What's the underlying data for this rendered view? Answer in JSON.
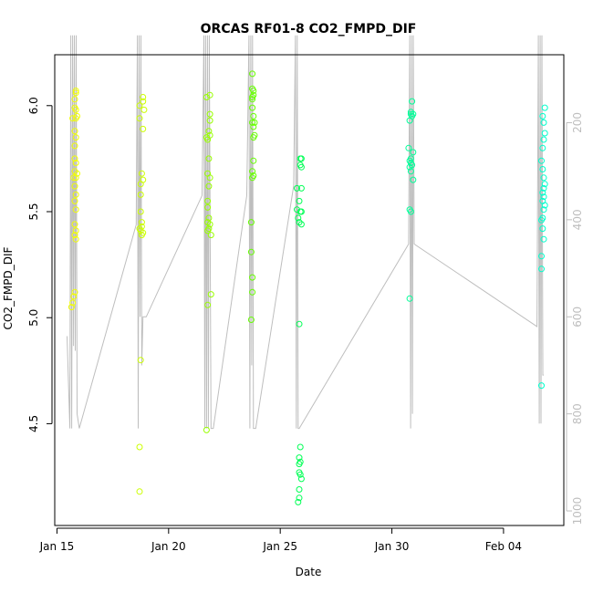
{
  "chart_data": {
    "type": "scatter",
    "title": "ORCAS RF01-8 CO2_FMPD_DIF",
    "xlabel": "Date",
    "ylabel": "CO2_FMPD_DIF",
    "x_ticks": [
      "Jan 15",
      "Jan 20",
      "Jan 25",
      "Jan 30",
      "Feb 04"
    ],
    "x_tick_days": [
      15,
      20,
      25,
      30,
      35
    ],
    "xlim_days": [
      14.9,
      37.7
    ],
    "ylim": [
      4.02,
      6.24
    ],
    "y_ticks": [
      4.5,
      5.0,
      5.5,
      6.0
    ],
    "y2_ticks": [
      200,
      400,
      600,
      800,
      1000
    ],
    "y2lim": [
      1030,
      60
    ],
    "y2_color": "#bebebe",
    "series": [
      {
        "color": "#f2ff00",
        "points": [
          [
            15.65,
            5.05
          ],
          [
            15.7,
            5.07
          ],
          [
            15.75,
            5.66
          ],
          [
            15.7,
            5.94
          ],
          [
            15.8,
            5.99
          ],
          [
            15.85,
            6.07
          ],
          [
            15.85,
            6.06
          ],
          [
            15.8,
            6.03
          ],
          [
            15.85,
            5.98
          ],
          [
            15.85,
            5.94
          ],
          [
            15.8,
            5.88
          ],
          [
            15.85,
            5.85
          ],
          [
            15.8,
            5.75
          ],
          [
            15.85,
            5.73
          ],
          [
            15.8,
            5.69
          ],
          [
            15.85,
            5.66
          ],
          [
            15.8,
            5.62
          ],
          [
            15.85,
            5.58
          ],
          [
            15.8,
            5.55
          ],
          [
            15.85,
            5.51
          ],
          [
            15.8,
            5.44
          ],
          [
            15.85,
            5.41
          ],
          [
            15.8,
            5.39
          ],
          [
            15.85,
            5.37
          ],
          [
            15.8,
            5.12
          ],
          [
            15.75,
            5.1
          ],
          [
            15.9,
            5.95
          ],
          [
            15.9,
            5.68
          ],
          [
            15.8,
            5.81
          ]
        ]
      },
      {
        "color": "#ccff00",
        "points": [
          [
            18.7,
            6.0
          ],
          [
            18.7,
            5.94
          ],
          [
            18.85,
            6.04
          ],
          [
            18.85,
            6.02
          ],
          [
            18.9,
            5.98
          ],
          [
            18.85,
            5.89
          ],
          [
            18.8,
            5.68
          ],
          [
            18.85,
            5.65
          ],
          [
            18.75,
            5.63
          ],
          [
            18.75,
            5.58
          ],
          [
            18.75,
            5.5
          ],
          [
            18.8,
            5.45
          ],
          [
            18.8,
            5.43
          ],
          [
            18.75,
            5.41
          ],
          [
            18.85,
            5.4
          ],
          [
            18.8,
            5.39
          ],
          [
            18.7,
            5.42
          ],
          [
            18.75,
            4.8
          ],
          [
            18.7,
            4.39
          ],
          [
            18.7,
            4.18
          ]
        ]
      },
      {
        "color": "#99ff00",
        "points": [
          [
            21.7,
            6.04
          ],
          [
            21.85,
            6.05
          ],
          [
            21.85,
            5.96
          ],
          [
            21.85,
            5.93
          ],
          [
            21.8,
            5.88
          ],
          [
            21.85,
            5.86
          ],
          [
            21.7,
            5.85
          ],
          [
            21.75,
            5.84
          ],
          [
            21.8,
            5.75
          ],
          [
            21.75,
            5.68
          ],
          [
            21.85,
            5.66
          ],
          [
            21.8,
            5.62
          ],
          [
            21.75,
            5.55
          ],
          [
            21.75,
            5.52
          ],
          [
            21.8,
            5.47
          ],
          [
            21.75,
            5.45
          ],
          [
            21.85,
            5.44
          ],
          [
            21.8,
            5.42
          ],
          [
            21.75,
            5.41
          ],
          [
            21.9,
            5.39
          ],
          [
            21.9,
            5.11
          ],
          [
            21.75,
            5.06
          ],
          [
            21.7,
            4.47
          ]
        ]
      },
      {
        "color": "#66ff00",
        "points": [
          [
            23.75,
            6.15
          ],
          [
            23.75,
            6.08
          ],
          [
            23.8,
            6.07
          ],
          [
            23.8,
            6.05
          ],
          [
            23.75,
            6.04
          ],
          [
            23.75,
            6.03
          ],
          [
            23.75,
            5.99
          ],
          [
            23.8,
            5.95
          ],
          [
            23.75,
            5.92
          ],
          [
            23.85,
            5.92
          ],
          [
            23.8,
            5.9
          ],
          [
            23.8,
            5.85
          ],
          [
            23.85,
            5.86
          ],
          [
            23.8,
            5.74
          ],
          [
            23.75,
            5.69
          ],
          [
            23.8,
            5.67
          ],
          [
            23.75,
            5.66
          ],
          [
            23.7,
            5.45
          ],
          [
            23.7,
            5.31
          ],
          [
            23.75,
            5.19
          ],
          [
            23.75,
            5.12
          ],
          [
            23.7,
            4.99
          ]
        ]
      },
      {
        "color": "#00ff55",
        "points": [
          [
            25.9,
            5.75
          ],
          [
            25.95,
            5.75
          ],
          [
            25.9,
            5.72
          ],
          [
            25.95,
            5.71
          ],
          [
            25.75,
            5.61
          ],
          [
            25.95,
            5.61
          ],
          [
            25.85,
            5.55
          ],
          [
            25.75,
            5.51
          ],
          [
            25.9,
            5.5
          ],
          [
            25.95,
            5.5
          ],
          [
            25.8,
            5.47
          ],
          [
            25.85,
            5.45
          ],
          [
            25.95,
            5.44
          ],
          [
            25.85,
            4.97
          ],
          [
            25.9,
            4.39
          ],
          [
            25.85,
            4.34
          ],
          [
            25.9,
            4.32
          ],
          [
            25.85,
            4.31
          ],
          [
            25.85,
            4.27
          ],
          [
            25.9,
            4.26
          ],
          [
            25.95,
            4.24
          ],
          [
            25.85,
            4.19
          ],
          [
            25.85,
            4.15
          ],
          [
            25.8,
            4.13
          ]
        ]
      },
      {
        "color": "#00ff99",
        "points": [
          [
            30.8,
            5.93
          ],
          [
            30.85,
            5.97
          ],
          [
            30.85,
            5.96
          ],
          [
            30.9,
            5.95
          ],
          [
            30.95,
            5.96
          ],
          [
            30.9,
            6.02
          ],
          [
            30.75,
            5.8
          ],
          [
            30.95,
            5.78
          ],
          [
            30.85,
            5.75
          ],
          [
            30.8,
            5.74
          ],
          [
            30.85,
            5.73
          ],
          [
            30.9,
            5.72
          ],
          [
            30.8,
            5.71
          ],
          [
            30.85,
            5.69
          ],
          [
            30.95,
            5.65
          ],
          [
            30.8,
            5.51
          ],
          [
            30.85,
            5.5
          ],
          [
            30.8,
            5.09
          ]
        ]
      },
      {
        "color": "#00ffcc",
        "points": [
          [
            36.75,
            5.95
          ],
          [
            36.8,
            5.92
          ],
          [
            36.85,
            5.99
          ],
          [
            36.85,
            5.87
          ],
          [
            36.8,
            5.84
          ],
          [
            36.75,
            5.8
          ],
          [
            36.7,
            5.74
          ],
          [
            36.75,
            5.7
          ],
          [
            36.8,
            5.66
          ],
          [
            36.85,
            5.63
          ],
          [
            36.8,
            5.61
          ],
          [
            36.75,
            5.59
          ],
          [
            36.8,
            5.57
          ],
          [
            36.75,
            5.55
          ],
          [
            36.85,
            5.53
          ],
          [
            36.8,
            5.51
          ],
          [
            36.75,
            5.47
          ],
          [
            36.7,
            5.46
          ],
          [
            36.75,
            5.42
          ],
          [
            36.8,
            5.37
          ],
          [
            36.7,
            5.29
          ],
          [
            36.7,
            5.23
          ],
          [
            36.7,
            4.68
          ]
        ]
      }
    ],
    "pressure_trace": [
      [
        15.45,
        640
      ],
      [
        15.58,
        830
      ],
      [
        15.62,
        20
      ],
      [
        15.66,
        830
      ],
      [
        15.7,
        20
      ],
      [
        15.74,
        660
      ],
      [
        15.78,
        20
      ],
      [
        15.82,
        670
      ],
      [
        15.86,
        20
      ],
      [
        15.9,
        800
      ],
      [
        16.0,
        830
      ],
      [
        18.55,
        410
      ],
      [
        18.6,
        20
      ],
      [
        18.64,
        830
      ],
      [
        18.68,
        20
      ],
      [
        18.72,
        600
      ],
      [
        18.76,
        20
      ],
      [
        18.8,
        700
      ],
      [
        18.85,
        600
      ],
      [
        19.0,
        600
      ],
      [
        21.5,
        350
      ],
      [
        21.58,
        20
      ],
      [
        21.62,
        830
      ],
      [
        21.66,
        20
      ],
      [
        21.7,
        830
      ],
      [
        21.74,
        20
      ],
      [
        21.78,
        830
      ],
      [
        21.82,
        20
      ],
      [
        21.9,
        830
      ],
      [
        22.0,
        830
      ],
      [
        23.5,
        350
      ],
      [
        23.6,
        20
      ],
      [
        23.64,
        830
      ],
      [
        23.68,
        20
      ],
      [
        23.72,
        700
      ],
      [
        23.76,
        20
      ],
      [
        23.8,
        830
      ],
      [
        23.9,
        830
      ],
      [
        25.6,
        330
      ],
      [
        25.68,
        20
      ],
      [
        25.72,
        830
      ],
      [
        25.76,
        20
      ],
      [
        25.8,
        830
      ],
      [
        25.85,
        830
      ],
      [
        30.75,
        450
      ],
      [
        30.8,
        20
      ],
      [
        30.84,
        830
      ],
      [
        30.88,
        20
      ],
      [
        30.92,
        800
      ],
      [
        30.96,
        20
      ],
      [
        31.0,
        450
      ],
      [
        36.5,
        620
      ],
      [
        36.56,
        20
      ],
      [
        36.6,
        820
      ],
      [
        36.64,
        20
      ],
      [
        36.68,
        820
      ],
      [
        36.72,
        20
      ],
      [
        36.76,
        720
      ],
      [
        36.8,
        720
      ]
    ]
  }
}
